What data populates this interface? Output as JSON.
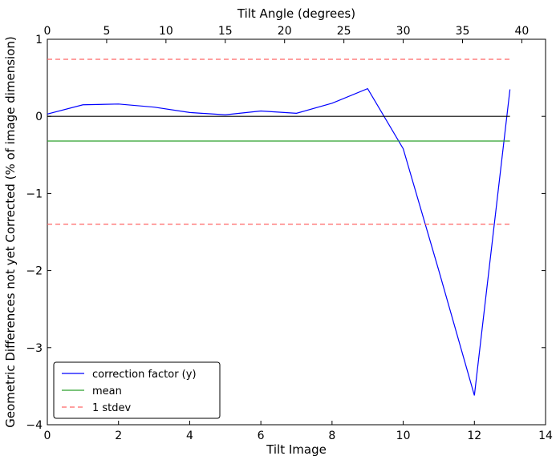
{
  "chart_data": {
    "type": "line",
    "title": "",
    "xlabel": "Tilt Image",
    "ylabel": "Geometric Differences not yet Corrected (% of image dimension)",
    "x2label": "Tilt Angle (degrees)",
    "xlim": [
      0,
      14
    ],
    "ylim": [
      -4,
      1
    ],
    "x2lim": [
      0,
      42
    ],
    "xticks": [
      0,
      2,
      4,
      6,
      8,
      10,
      12,
      14
    ],
    "yticks": [
      1,
      0,
      -1,
      -2,
      -3,
      -4
    ],
    "x2ticks": [
      0,
      5,
      10,
      15,
      20,
      25,
      30,
      35,
      40
    ],
    "xtick_labels": [
      "0",
      "2",
      "4",
      "6",
      "8",
      "10",
      "12",
      "14"
    ],
    "ytick_labels": [
      "1",
      "0",
      "−1",
      "−2",
      "−3",
      "−4"
    ],
    "x2tick_labels": [
      "0",
      "5",
      "10",
      "15",
      "20",
      "25",
      "30",
      "35",
      "40"
    ],
    "grid": false,
    "legend_position": "lower-left",
    "series": [
      {
        "name": "correction factor (y)",
        "style": "solid",
        "color": "#0000ff",
        "x": [
          0,
          1,
          2,
          3,
          4,
          5,
          6,
          7,
          8,
          9,
          10,
          11,
          12,
          13
        ],
        "y": [
          0.03,
          0.15,
          0.16,
          0.12,
          0.05,
          0.02,
          0.07,
          0.04,
          0.17,
          0.36,
          -0.42,
          -2.0,
          -3.62,
          0.35
        ]
      },
      {
        "name": "mean",
        "style": "solid",
        "color": "#2ca02c",
        "x": [
          0,
          13
        ],
        "y": [
          -0.32,
          -0.32
        ]
      },
      {
        "name": "1 stdev",
        "style": "dashed",
        "color": "#ff6666",
        "x": [
          0,
          13
        ],
        "y": [
          0.74,
          0.74
        ]
      },
      {
        "name": "",
        "style": "dashed",
        "color": "#ff6666",
        "x": [
          0,
          13
        ],
        "y": [
          -1.4,
          -1.4
        ]
      },
      {
        "name": "",
        "style": "solid",
        "color": "#000000",
        "x": [
          0,
          13
        ],
        "y": [
          0,
          0
        ]
      }
    ],
    "legend_entries": [
      "correction factor (y)",
      "mean",
      "1 stdev"
    ]
  }
}
